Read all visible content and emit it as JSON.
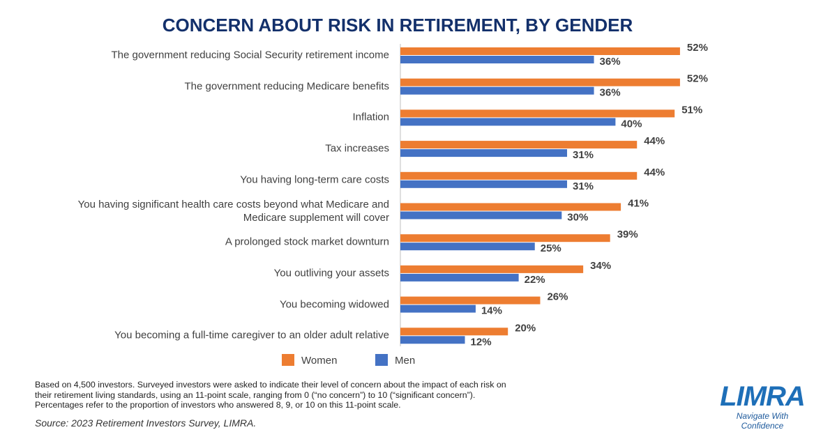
{
  "chart_data": {
    "type": "hbar",
    "title": "CONCERN ABOUT RISK IN RETIREMENT, BY GENDER",
    "categories": [
      "The government reducing Social Security retirement income",
      "The government reducing Medicare benefits",
      "Inflation",
      "Tax increases",
      "You having long-term care costs",
      "You having significant health care costs beyond what Medicare and Medicare supplement will cover",
      "A prolonged stock market downturn",
      "You outliving your assets",
      "You becoming widowed",
      "You becoming a full-time caregiver to an older adult relative"
    ],
    "series": [
      {
        "name": "Women",
        "color": "#ed7d31",
        "values": [
          52,
          52,
          51,
          44,
          44,
          41,
          39,
          34,
          26,
          20
        ],
        "value_labels": [
          "52%",
          "52%",
          "51%",
          "44%",
          "44%",
          "41%",
          "39%",
          "34%",
          "26%",
          "20%"
        ]
      },
      {
        "name": "Men",
        "color": "#4472c4",
        "values": [
          36,
          36,
          40,
          31,
          31,
          30,
          25,
          22,
          14,
          12
        ],
        "value_labels": [
          "36%",
          "36%",
          "40%",
          "31%",
          "31%",
          "30%",
          "25%",
          "22%",
          "14%",
          "12%"
        ]
      }
    ],
    "legend": "bottom"
  },
  "note": "Based on 4,500 investors. Surveyed investors were asked to indicate their level of concern about the impact of each risk on their retirement living standards, using an 11-point scale, ranging from 0 (“no concern”) to 10 (“significant concern”). Percentages refer to the proportion of investors who answered 8, 9, or 10 on this 11-point scale.",
  "source": "Source: 2023 Retirement Investors Survey, LIMRA.",
  "logo": {
    "name": "LIMRA",
    "tagline": "Navigate With Confidence"
  }
}
